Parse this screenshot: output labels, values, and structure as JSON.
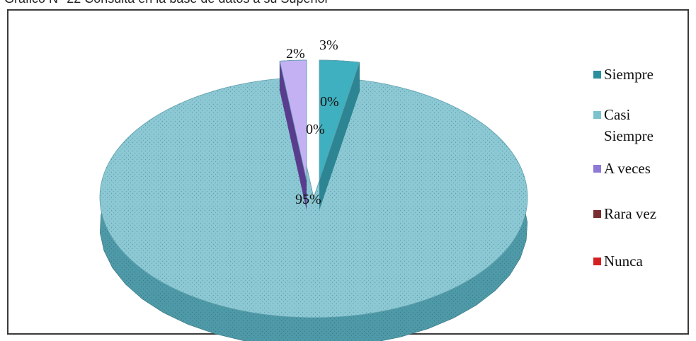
{
  "header": {
    "cut_title": "Gráfico N° 22 Consulta en la base de datos a su Superior"
  },
  "chart_data": {
    "type": "pie",
    "style": "3d-exploded",
    "categories": [
      "Siempre",
      "Casi Siempre",
      "A veces",
      "Rara vez",
      "Nunca"
    ],
    "values": [
      3,
      95,
      2,
      0,
      0
    ],
    "data_labels": [
      "3%",
      "95%",
      "2%",
      "0%",
      "0%"
    ],
    "legend_position": "right",
    "colors": [
      "#3fa9b7",
      "#8ed0dc",
      "#b9a6ef",
      "#7a2d33",
      "#d42020"
    ]
  },
  "legend": {
    "items": [
      {
        "label": "Siempre",
        "color": "#2b8f9e"
      },
      {
        "label": "Casi\nSiempre",
        "color": "#7cc3cf"
      },
      {
        "label": "A veces",
        "color": "#8f78d6"
      },
      {
        "label": "Rara vez",
        "color": "#7a2d33"
      },
      {
        "label": "Nunca",
        "color": "#d42020"
      }
    ]
  }
}
